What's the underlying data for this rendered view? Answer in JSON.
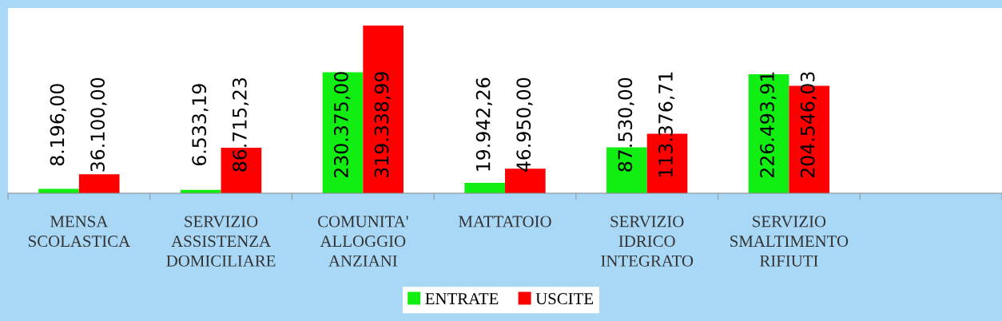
{
  "chart_data": {
    "type": "bar",
    "categories": [
      "MENSA\nSCOLASTICA",
      "SERVIZIO\nASSISTENZA\nDOMICILIARE",
      "COMUNITA'\nALLOGGIO\nANZIANI",
      "MATTATOIO",
      "SERVIZIO\nIDRICO\nINTEGRATO",
      "SERVIZIO\nSMALTIMENTO\nRIFIUTI",
      null
    ],
    "series": [
      {
        "name": "ENTRATE",
        "color": "#11ee11",
        "values": [
          8196.0,
          6533.19,
          230375.0,
          19942.26,
          87530.0,
          226493.91,
          null
        ],
        "value_labels": [
          "8.196,00",
          "6.533,19",
          "230.375,00",
          "19.942,26",
          "87.530,00",
          "226.493,91",
          null
        ]
      },
      {
        "name": "USCITE",
        "color": "#ff0000",
        "values": [
          36100.0,
          86715.23,
          319338.99,
          46950.0,
          113376.71,
          204546.03,
          null
        ],
        "value_labels": [
          "36.100,00",
          "86.715,23",
          "319.338,99",
          "46.950,00",
          "113.376,71",
          "204.546,03",
          null
        ]
      }
    ],
    "legend": "bottom",
    "grid": false
  }
}
